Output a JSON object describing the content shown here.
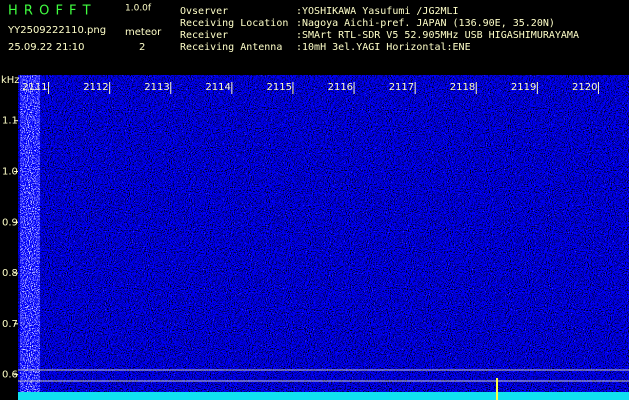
{
  "header": {
    "app": "H R O F F T",
    "version": "1.0.0f",
    "file": "YY2509222110.png",
    "timestamp": "25.09.22 21:10",
    "meteor_label": "meteor",
    "meteor_count": 2,
    "info": [
      {
        "label": "Ovserver",
        "value": ":YOSHIKAWA Yasufumi /JG2MLI"
      },
      {
        "label": "Receiving Location",
        "value": ":Nagoya Aichi-pref. JAPAN (136.90E, 35.20N)"
      },
      {
        "label": "Receiver",
        "value": ":SMArt RTL-SDR V5 52.905MHz USB HIGASHIMURAYAMA"
      },
      {
        "label": "Receiving Antenna",
        "value": ":10mH 3el.YAGI Horizontal:ENE"
      }
    ]
  },
  "spectrogram": {
    "y_unit": "kHz",
    "ylim": [
      0.55,
      1.19
    ],
    "yticks": [
      1.1,
      {
        "value": 1,
        "label": "1.0"
      },
      0.9,
      0.8,
      0.7,
      0.6
    ],
    "xlim": [
      2110.5,
      2120.5
    ],
    "xticks": [
      2111,
      2112,
      2113,
      2114,
      2115,
      2116,
      2117,
      2118,
      2119,
      2120
    ]
  }
}
